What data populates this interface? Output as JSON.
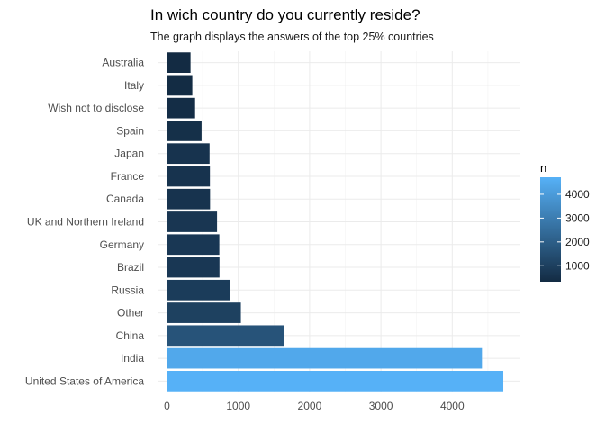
{
  "chart_data": {
    "type": "bar",
    "orientation": "horizontal",
    "title": "In wich country do you currently reside?",
    "subtitle": "The graph displays the answers of the top 25% countries",
    "xlabel": "",
    "ylabel": "",
    "xlim": [
      0,
      4850
    ],
    "x_ticks": [
      "0",
      "1000",
      "2000",
      "3000",
      "4000"
    ],
    "grid": true,
    "categories": [
      "United States of America",
      "India",
      "China",
      "Other",
      "Russia",
      "Brazil",
      "Germany",
      "UK and Northern Ireland",
      "Canada",
      "France",
      "Japan",
      "Spain",
      "Wish not to disclose",
      "Italy",
      "Australia"
    ],
    "values": [
      4716,
      4417,
      1644,
      1036,
      879,
      736,
      734,
      702,
      604,
      602,
      597,
      485,
      394,
      355,
      330
    ],
    "color_scale": {
      "title": "n",
      "low_color": "#132B43",
      "high_color": "#56B1F7",
      "range": [
        330,
        4716
      ],
      "ticks": [
        "1000",
        "2000",
        "3000",
        "4000"
      ],
      "placement": "right"
    }
  }
}
